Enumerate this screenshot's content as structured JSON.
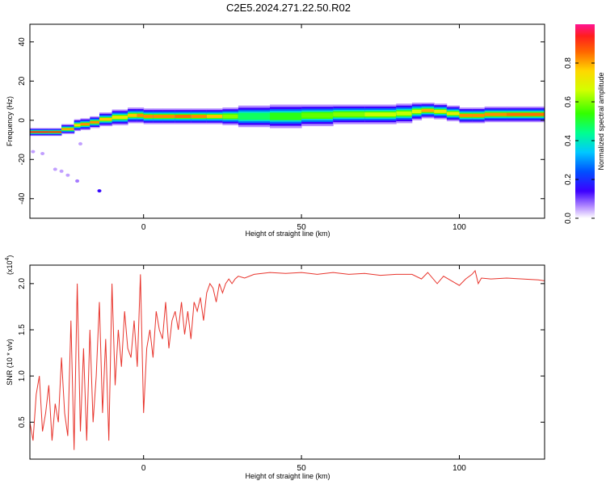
{
  "page_title": "C2E5.2024.271.22.50.R02",
  "chart_data": [
    {
      "type": "heatmap",
      "xlabel": "Height of straight line (km)",
      "ylabel": "Frequency (Hz)",
      "xlim": [
        -36,
        127
      ],
      "ylim": [
        -50,
        49
      ],
      "xticks": [
        0,
        50,
        100
      ],
      "yticks": [
        -40,
        -20,
        0,
        20,
        40
      ],
      "colorbar": {
        "label": "Normalized spectral amplitude",
        "range": [
          0,
          1
        ],
        "ticks": [
          0.0,
          0.2,
          0.4,
          0.6,
          0.8
        ],
        "tick_labels": [
          "0.0",
          "0.2",
          "0.4",
          "0.6",
          "0.8"
        ]
      },
      "ridge": {
        "x": [
          -36,
          -30,
          -26,
          -22,
          -20,
          -17,
          -14,
          -10,
          -5,
          -2,
          0,
          3,
          6,
          10,
          15,
          20,
          25,
          30,
          40,
          50,
          60,
          70,
          80,
          85,
          88,
          92,
          96,
          100,
          104,
          108,
          115,
          127
        ],
        "freq": [
          -6,
          -6,
          -6,
          -3,
          -2,
          -2,
          0,
          1,
          2,
          3,
          2,
          2,
          2,
          2,
          2,
          2,
          2,
          2,
          2,
          2,
          3,
          3,
          3,
          4,
          5,
          5,
          4,
          3,
          2,
          3,
          3,
          3
        ],
        "width": [
          2,
          2,
          2,
          3,
          3,
          3,
          3,
          4,
          4,
          4,
          4,
          4,
          4,
          4,
          4,
          4,
          4,
          5,
          6,
          6,
          5,
          5,
          5,
          5,
          4,
          4,
          4,
          4,
          4,
          4,
          4,
          4
        ],
        "amp": [
          0.95,
          0.95,
          0.9,
          0.7,
          0.8,
          0.85,
          0.8,
          0.75,
          0.7,
          0.85,
          0.8,
          0.85,
          0.8,
          0.85,
          0.85,
          0.8,
          0.75,
          0.45,
          0.5,
          0.55,
          0.6,
          0.6,
          0.7,
          0.6,
          0.75,
          0.85,
          0.6,
          0.8,
          0.85,
          0.8,
          0.85,
          0.85
        ]
      },
      "outliers": [
        {
          "x": -35,
          "freq": -16,
          "amp": 0.05
        },
        {
          "x": -32,
          "freq": -17,
          "amp": 0.05
        },
        {
          "x": -28,
          "freq": -25,
          "amp": 0.05
        },
        {
          "x": -26,
          "freq": -26,
          "amp": 0.05
        },
        {
          "x": -24,
          "freq": -28,
          "amp": 0.05
        },
        {
          "x": -21,
          "freq": -31,
          "amp": 0.07
        },
        {
          "x": -14,
          "freq": -36,
          "amp": 0.15
        },
        {
          "x": -20,
          "freq": -12,
          "amp": 0.05
        }
      ]
    },
    {
      "type": "line",
      "xlabel": "Height of straight line (km)",
      "ylabel": "SNR (10 * v/v)",
      "multiplier": "(x10",
      "multiplier_exp": "4",
      "multiplier_close": ")",
      "xlim": [
        -36,
        127
      ],
      "ylim": [
        0.1,
        2.2
      ],
      "xticks": [
        0,
        50,
        100
      ],
      "yticks": [
        0.5,
        1.0,
        1.5,
        2.0
      ],
      "ytick_labels": [
        "0.5",
        "1.0",
        "1.5",
        "2.0"
      ],
      "color": "#e8342c",
      "series": [
        {
          "x": [
            -36,
            -35,
            -34,
            -33,
            -32,
            -31,
            -30,
            -29,
            -28,
            -27,
            -26,
            -25,
            -24,
            -23,
            -22,
            -21,
            -20,
            -19,
            -18,
            -17,
            -16,
            -15,
            -14,
            -13,
            -12,
            -11,
            -10,
            -9,
            -8,
            -7,
            -6,
            -5,
            -4,
            -3,
            -2,
            -1,
            0,
            1,
            2,
            3,
            4,
            5,
            6,
            7,
            8,
            9,
            10,
            11,
            12,
            13,
            14,
            15,
            16,
            17,
            18,
            19,
            20,
            21,
            22,
            23,
            24,
            25,
            26,
            27,
            28,
            29,
            30,
            32,
            35,
            40,
            45,
            50,
            55,
            60,
            65,
            70,
            75,
            80,
            85,
            88,
            90,
            93,
            95,
            98,
            100,
            102,
            104,
            105,
            106,
            107,
            110,
            115,
            120,
            125,
            127
          ],
          "y": [
            0.5,
            0.3,
            0.8,
            1.0,
            0.4,
            0.6,
            0.9,
            0.3,
            0.7,
            0.5,
            1.2,
            0.6,
            0.35,
            1.6,
            0.2,
            2.0,
            0.4,
            1.3,
            0.3,
            1.5,
            0.5,
            1.0,
            1.8,
            0.6,
            1.4,
            0.3,
            2.0,
            0.9,
            1.5,
            1.1,
            1.7,
            1.3,
            1.2,
            1.6,
            1.1,
            2.1,
            0.6,
            1.3,
            1.5,
            1.2,
            1.7,
            1.5,
            1.4,
            1.8,
            1.3,
            1.6,
            1.7,
            1.5,
            1.8,
            1.45,
            1.7,
            1.4,
            1.8,
            1.7,
            1.85,
            1.6,
            1.9,
            2.0,
            1.95,
            1.8,
            2.0,
            1.9,
            2.0,
            2.05,
            2.0,
            2.05,
            2.08,
            2.06,
            2.1,
            2.12,
            2.11,
            2.12,
            2.1,
            2.12,
            2.1,
            2.11,
            2.09,
            2.1,
            2.1,
            2.05,
            2.12,
            2.0,
            2.08,
            2.02,
            1.98,
            2.05,
            2.1,
            2.14,
            2.0,
            2.06,
            2.05,
            2.06,
            2.05,
            2.04,
            2.03
          ]
        }
      ]
    }
  ]
}
